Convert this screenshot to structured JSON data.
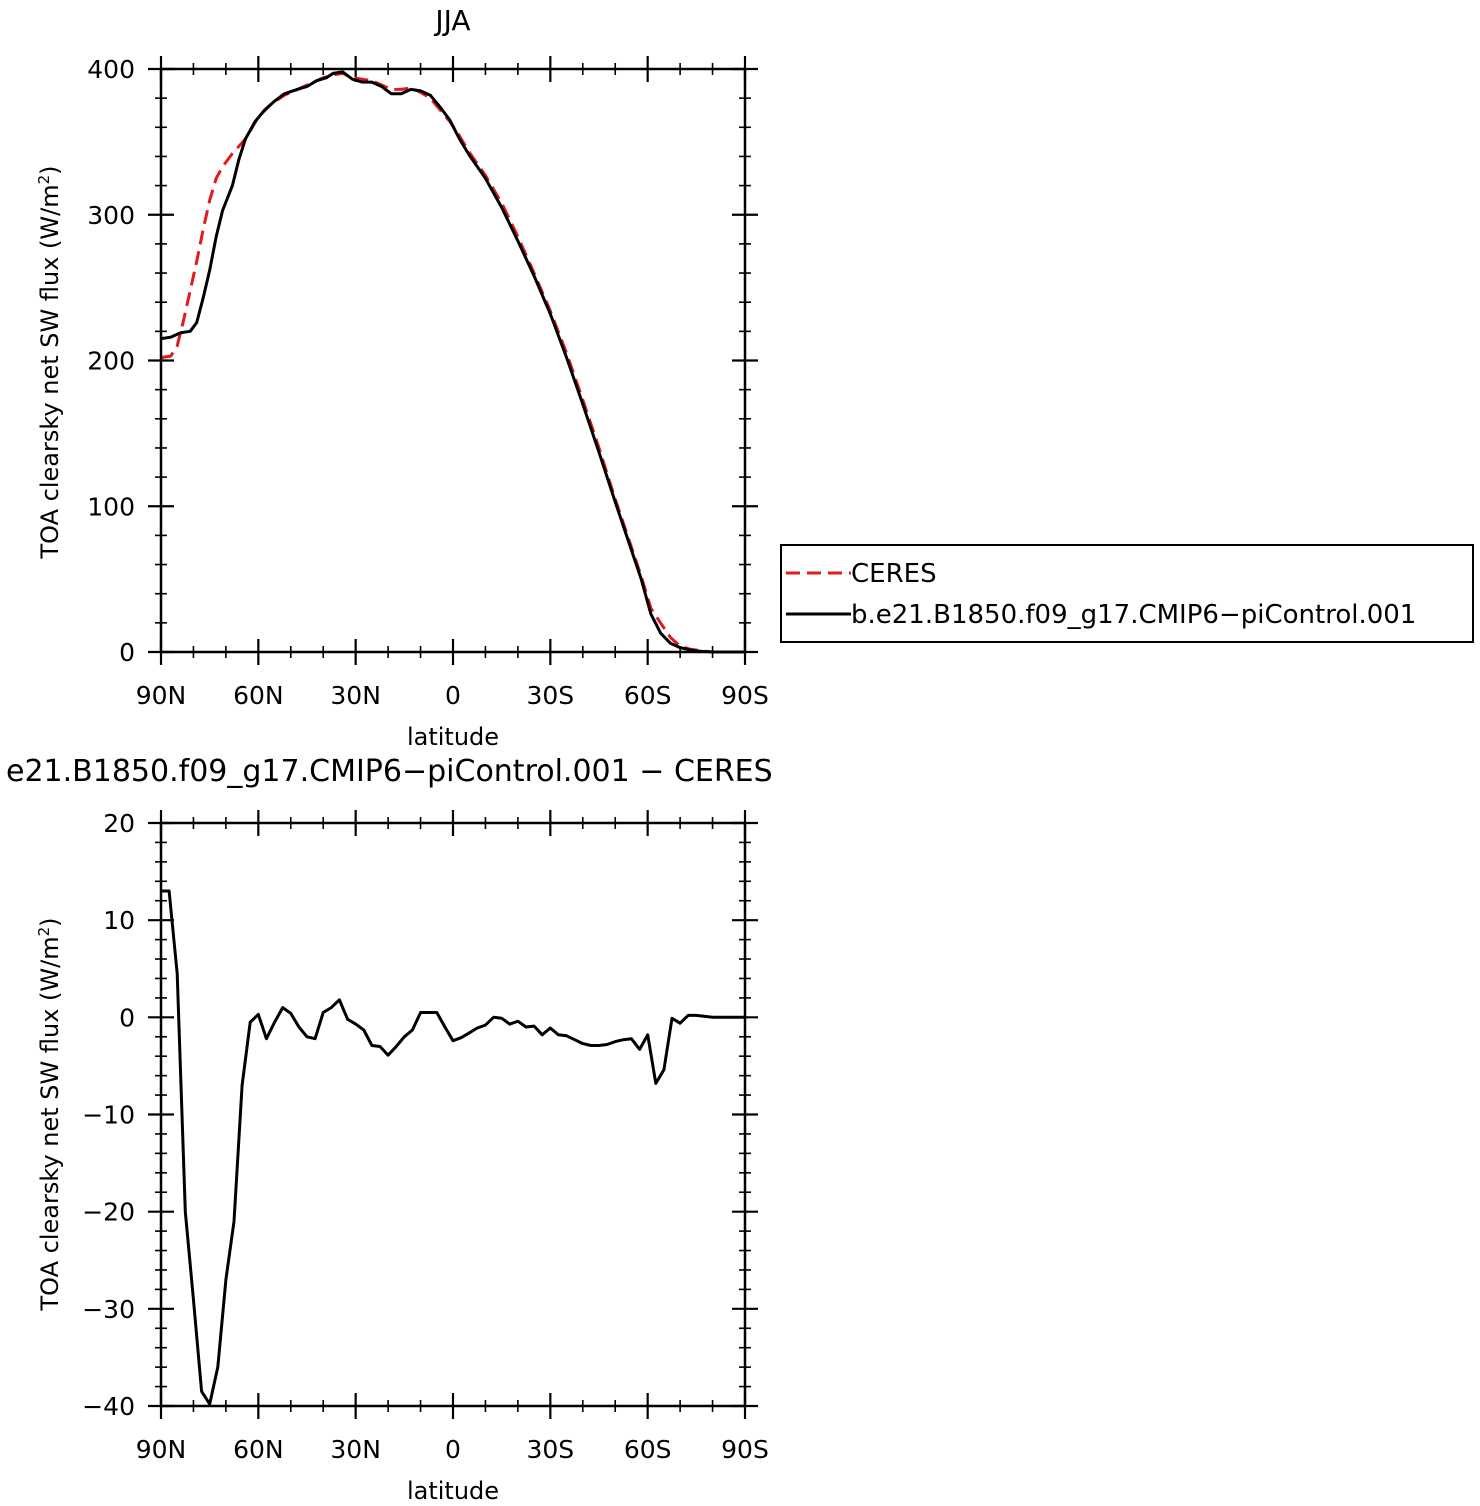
{
  "chart_data": [
    {
      "type": "line",
      "title": "JJA",
      "xlabel": "latitude",
      "ylabel": "TOA clearsky net SW flux (W/m²)",
      "ylabel_main": "TOA clearsky net SW flux (W/m",
      "ylabel_sup": "2",
      "ylabel_close": ")",
      "xlim": [
        90,
        -90
      ],
      "ylim": [
        0,
        400
      ],
      "x_ticks": [
        {
          "value": 90,
          "label": "90N"
        },
        {
          "value": 60,
          "label": "60N"
        },
        {
          "value": 30,
          "label": "30N"
        },
        {
          "value": 0,
          "label": "0"
        },
        {
          "value": -30,
          "label": "30S"
        },
        {
          "value": -60,
          "label": "60S"
        },
        {
          "value": -90,
          "label": "90S"
        }
      ],
      "y_ticks": [
        {
          "value": 0,
          "label": "0"
        },
        {
          "value": 100,
          "label": "100"
        },
        {
          "value": 200,
          "label": "200"
        },
        {
          "value": 300,
          "label": "300"
        },
        {
          "value": 400,
          "label": "400"
        }
      ],
      "grid": false,
      "legend_position": "outside-right",
      "series": [
        {
          "name": "CERES",
          "color": "#e31a1c",
          "dash": "dashed",
          "points": [
            [
              90,
              202
            ],
            [
              87,
              203
            ],
            [
              85,
              210
            ],
            [
              83,
              228
            ],
            [
              81,
              248
            ],
            [
              79,
              268
            ],
            [
              77,
              290
            ],
            [
              75,
              310
            ],
            [
              73,
              325
            ],
            [
              71,
              333
            ],
            [
              68,
              342
            ],
            [
              64,
              352
            ],
            [
              60,
              367
            ],
            [
              56,
              376
            ],
            [
              52,
              382
            ],
            [
              48,
              386
            ],
            [
              44,
              390
            ],
            [
              40,
              394
            ],
            [
              37,
              396
            ],
            [
              34,
              397
            ],
            [
              31,
              394
            ],
            [
              28,
              393
            ],
            [
              25,
              392
            ],
            [
              22,
              389
            ],
            [
              19,
              386
            ],
            [
              16,
              386
            ],
            [
              13,
              387
            ],
            [
              10,
              384
            ],
            [
              7,
              380
            ],
            [
              4,
              372
            ],
            [
              1,
              364
            ],
            [
              -2,
              354
            ],
            [
              -5,
              343
            ],
            [
              -10,
              327
            ],
            [
              -15,
              308
            ],
            [
              -20,
              285
            ],
            [
              -25,
              260
            ],
            [
              -30,
              234
            ],
            [
              -35,
              205
            ],
            [
              -40,
              173
            ],
            [
              -45,
              140
            ],
            [
              -50,
              105
            ],
            [
              -55,
              72
            ],
            [
              -58,
              52
            ],
            [
              -61,
              30
            ],
            [
              -64,
              20
            ],
            [
              -67,
              10
            ],
            [
              -70,
              4
            ],
            [
              -73,
              2
            ],
            [
              -76,
              1
            ],
            [
              -80,
              0
            ],
            [
              -85,
              0
            ],
            [
              -90,
              0
            ]
          ]
        },
        {
          "name": "b.e21.B1850.f09_g17.CMIP6−piControl.001",
          "color": "#000000",
          "dash": "solid",
          "points": [
            [
              90,
              215
            ],
            [
              87,
              216
            ],
            [
              84,
              219
            ],
            [
              81,
              220
            ],
            [
              79,
              226
            ],
            [
              77,
              243
            ],
            [
              75,
              262
            ],
            [
              73,
              285
            ],
            [
              71,
              303
            ],
            [
              68,
              320
            ],
            [
              66,
              338
            ],
            [
              64,
              352
            ],
            [
              61,
              364
            ],
            [
              58,
              372
            ],
            [
              55,
              378
            ],
            [
              52,
              383
            ],
            [
              48,
              386
            ],
            [
              45,
              388
            ],
            [
              42,
              392
            ],
            [
              39,
              394
            ],
            [
              37,
              397
            ],
            [
              34,
              398
            ],
            [
              31,
              393
            ],
            [
              28,
              391
            ],
            [
              25,
              391
            ],
            [
              22,
              388
            ],
            [
              19,
              383
            ],
            [
              16,
              383
            ],
            [
              13,
              386
            ],
            [
              10,
              385
            ],
            [
              7,
              382
            ],
            [
              4,
              374
            ],
            [
              1,
              365
            ],
            [
              -2,
              352
            ],
            [
              -5,
              341
            ],
            [
              -10,
              325
            ],
            [
              -15,
              305
            ],
            [
              -20,
              282
            ],
            [
              -25,
              258
            ],
            [
              -30,
              232
            ],
            [
              -35,
              202
            ],
            [
              -40,
              170
            ],
            [
              -45,
              137
            ],
            [
              -50,
              103
            ],
            [
              -55,
              70
            ],
            [
              -58,
              50
            ],
            [
              -61,
              26
            ],
            [
              -64,
              13
            ],
            [
              -67,
              6
            ],
            [
              -70,
              3
            ],
            [
              -73,
              1.5
            ],
            [
              -76,
              0.5
            ],
            [
              -80,
              0
            ],
            [
              -85,
              0
            ],
            [
              -90,
              0
            ]
          ]
        }
      ]
    },
    {
      "type": "line",
      "title": "e21.B1850.f09_g17.CMIP6−piControl.001  −  CERES",
      "xlabel": "latitude",
      "ylabel": "TOA clearsky net SW flux (W/m²)",
      "ylabel_main": "TOA clearsky net SW flux (W/m",
      "ylabel_sup": "2",
      "ylabel_close": ")",
      "xlim": [
        90,
        -90
      ],
      "ylim": [
        -40,
        20
      ],
      "x_ticks": [
        {
          "value": 90,
          "label": "90N"
        },
        {
          "value": 60,
          "label": "60N"
        },
        {
          "value": 30,
          "label": "30N"
        },
        {
          "value": 0,
          "label": "0"
        },
        {
          "value": -30,
          "label": "30S"
        },
        {
          "value": -60,
          "label": "60S"
        },
        {
          "value": -90,
          "label": "90S"
        }
      ],
      "y_ticks": [
        {
          "value": -40,
          "label": "−40"
        },
        {
          "value": -30,
          "label": "−30"
        },
        {
          "value": -20,
          "label": "−20"
        },
        {
          "value": -10,
          "label": "−10"
        },
        {
          "value": 0,
          "label": "0"
        },
        {
          "value": 10,
          "label": "10"
        },
        {
          "value": 20,
          "label": "20"
        }
      ],
      "grid": false,
      "series": [
        {
          "color": "#000000",
          "dash": "solid",
          "points": [
            [
              90,
              13
            ],
            [
              87.5,
              13
            ],
            [
              85,
              4.5
            ],
            [
              82.5,
              -20
            ],
            [
              80,
              -29
            ],
            [
              77.5,
              -38.5
            ],
            [
              75,
              -39.8
            ],
            [
              72.5,
              -36
            ],
            [
              70,
              -27
            ],
            [
              67.5,
              -21
            ],
            [
              65,
              -7
            ],
            [
              62.5,
              -0.5
            ],
            [
              60,
              0.3
            ],
            [
              57.5,
              -2.2
            ],
            [
              55,
              -0.5
            ],
            [
              52.5,
              1
            ],
            [
              50,
              0.4
            ],
            [
              47.5,
              -1
            ],
            [
              45,
              -2
            ],
            [
              42.5,
              -2.2
            ],
            [
              40,
              0.5
            ],
            [
              37.5,
              1
            ],
            [
              35,
              1.8
            ],
            [
              32.5,
              -0.2
            ],
            [
              30,
              -0.7
            ],
            [
              27.5,
              -1.3
            ],
            [
              25,
              -2.9
            ],
            [
              22.5,
              -3
            ],
            [
              20,
              -3.9
            ],
            [
              17.5,
              -3
            ],
            [
              15,
              -2
            ],
            [
              12.5,
              -1.3
            ],
            [
              10,
              0.5
            ],
            [
              7.5,
              0.5
            ],
            [
              5,
              0.5
            ],
            [
              2.5,
              -1
            ],
            [
              0,
              -2.4
            ],
            [
              -2.5,
              -2.1
            ],
            [
              -5,
              -1.6
            ],
            [
              -7.5,
              -1.1
            ],
            [
              -10,
              -0.8
            ],
            [
              -12.5,
              0
            ],
            [
              -15,
              -0.1
            ],
            [
              -17.5,
              -0.7
            ],
            [
              -20,
              -0.4
            ],
            [
              -22.5,
              -1
            ],
            [
              -25,
              -0.9
            ],
            [
              -27.5,
              -1.8
            ],
            [
              -30,
              -1.1
            ],
            [
              -32.5,
              -1.8
            ],
            [
              -35,
              -1.9
            ],
            [
              -37.5,
              -2.3
            ],
            [
              -40,
              -2.7
            ],
            [
              -42.5,
              -2.9
            ],
            [
              -45,
              -2.9
            ],
            [
              -47.5,
              -2.8
            ],
            [
              -50,
              -2.5
            ],
            [
              -52.5,
              -2.3
            ],
            [
              -55,
              -2.2
            ],
            [
              -57.5,
              -3.3
            ],
            [
              -60,
              -1.8
            ],
            [
              -62.5,
              -6.8
            ],
            [
              -65,
              -5.4
            ],
            [
              -67.5,
              -0.1
            ],
            [
              -70,
              -0.6
            ],
            [
              -72.5,
              0.2
            ],
            [
              -75,
              0.2
            ],
            [
              -80,
              0
            ],
            [
              -85,
              0
            ],
            [
              -90,
              0
            ]
          ]
        }
      ]
    }
  ]
}
